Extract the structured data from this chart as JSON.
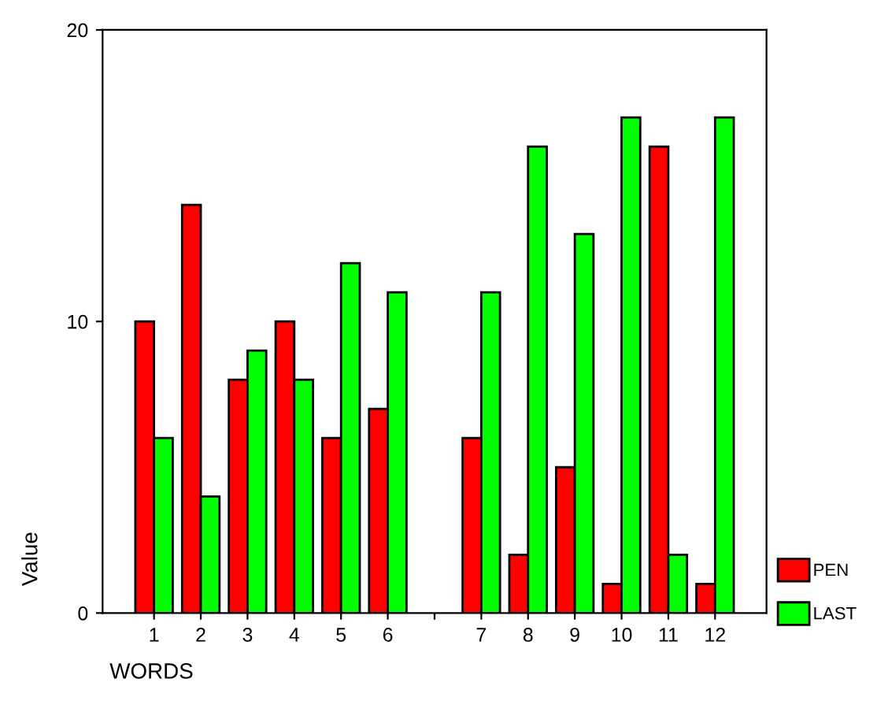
{
  "chart_data": {
    "type": "bar",
    "xlabel": "WORDS",
    "ylabel": "Value",
    "categories": [
      "1",
      "2",
      "3",
      "4",
      "5",
      "6",
      null,
      "7",
      "8",
      "9",
      "10",
      "11",
      "12"
    ],
    "series": [
      {
        "name": "PEN",
        "color": "#ff0000",
        "values": [
          10,
          14,
          8,
          10,
          6,
          7,
          null,
          6,
          2,
          5,
          1,
          16,
          1
        ]
      },
      {
        "name": "LAST",
        "color": "#00ff00",
        "values": [
          6,
          4,
          9,
          8,
          12,
          11,
          null,
          11,
          16,
          13,
          17,
          2,
          17
        ]
      }
    ],
    "ylim": [
      0,
      20
    ],
    "yticks": [
      0,
      10,
      20
    ],
    "grid": false,
    "legend": "bottom right"
  }
}
